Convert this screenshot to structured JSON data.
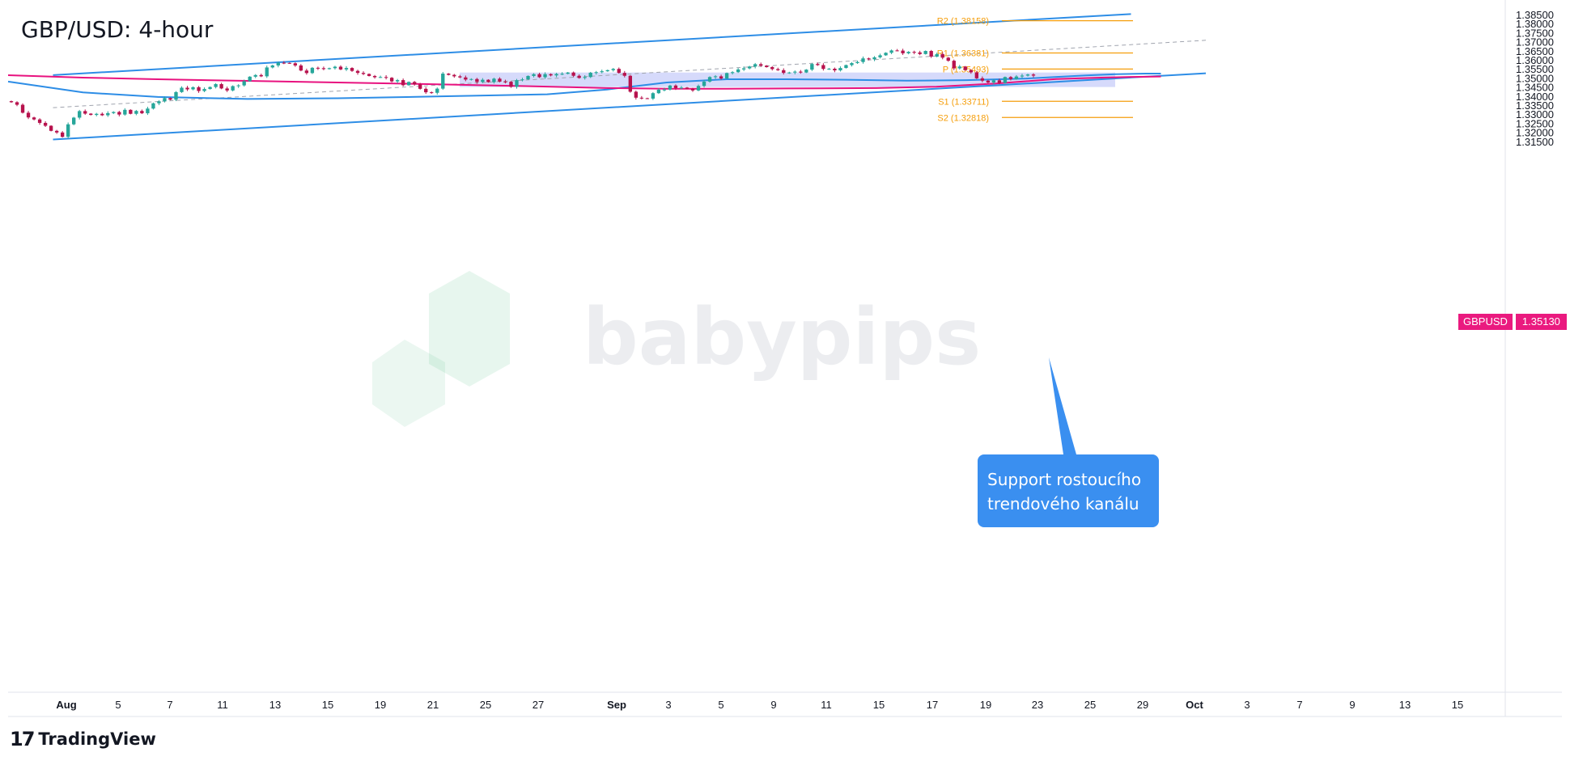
{
  "title": "GBP/USD: 4-hour",
  "symbol_label": "GBPUSD",
  "last_price_label": "1.35130",
  "watermark": "babypips",
  "brand": {
    "name": "TradingView",
    "mark": "17"
  },
  "callout": {
    "line1": "Support rostoucího",
    "line2": "trendového kanálu"
  },
  "colors": {
    "up_candle": "#26a69a",
    "down_candle": "#b7124d",
    "channel": "#2d8de6",
    "sma_blue": "#2d8de6",
    "sma_pink": "#e8127f",
    "pivot": "#f59e0b",
    "zone": "#c8cdfa",
    "callout": "#3a8ff0",
    "price_tag": "#ea1a7f"
  },
  "chart_data": {
    "type": "candlestick",
    "timeframe": "4-hour",
    "y_ticks": [
      "1.38500",
      "1.38000",
      "1.37500",
      "1.37000",
      "1.36500",
      "1.36000",
      "1.35500",
      "1.35000",
      "1.34500",
      "1.34000",
      "1.33500",
      "1.33000",
      "1.32500",
      "1.32000",
      "1.31500"
    ],
    "x_ticks": [
      "Aug",
      "5",
      "7",
      "11",
      "13",
      "15",
      "19",
      "21",
      "25",
      "27",
      "Sep",
      "3",
      "5",
      "9",
      "11",
      "15",
      "17",
      "19",
      "23",
      "25",
      "29",
      "Oct",
      "3",
      "7",
      "9",
      "13",
      "15"
    ],
    "ylim": [
      1.3105,
      1.3865
    ],
    "last_price": 1.3513,
    "candles_close_path": [
      1.3366,
      1.3352,
      1.3308,
      1.3282,
      1.3271,
      1.3252,
      1.3236,
      1.3208,
      1.3199,
      1.3175,
      1.3244,
      1.3281,
      1.3317,
      1.3303,
      1.3296,
      1.3302,
      1.3294,
      1.3306,
      1.3312,
      1.3298,
      1.3324,
      1.3302,
      1.3318,
      1.3305,
      1.3331,
      1.336,
      1.3371,
      1.3389,
      1.338,
      1.3422,
      1.3446,
      1.3437,
      1.3449,
      1.3428,
      1.3439,
      1.345,
      1.3466,
      1.3442,
      1.3431,
      1.3455,
      1.3459,
      1.3482,
      1.3507,
      1.3516,
      1.3509,
      1.3558,
      1.3569,
      1.3584,
      1.3583,
      1.3581,
      1.3569,
      1.3541,
      1.3527,
      1.3556,
      1.3554,
      1.3549,
      1.3554,
      1.3562,
      1.3547,
      1.3555,
      1.3539,
      1.3528,
      1.3522,
      1.3511,
      1.3504,
      1.3505,
      1.3501,
      1.3481,
      1.3488,
      1.346,
      1.3478,
      1.3465,
      1.344,
      1.3421,
      1.3418,
      1.3441,
      1.3524,
      1.3517,
      1.3509,
      1.3503,
      1.3491,
      1.3494,
      1.3478,
      1.349,
      1.3477,
      1.3496,
      1.348,
      1.3479,
      1.3451,
      1.3488,
      1.3492,
      1.3511,
      1.3521,
      1.3504,
      1.3521,
      1.3514,
      1.3522,
      1.3523,
      1.353,
      1.3512,
      1.35,
      1.3505,
      1.3529,
      1.3532,
      1.3537,
      1.3543,
      1.355,
      1.3528,
      1.3512,
      1.3424,
      1.3391,
      1.3388,
      1.3386,
      1.3416,
      1.3435,
      1.3436,
      1.3458,
      1.3444,
      1.3447,
      1.344,
      1.3431,
      1.3456,
      1.348,
      1.3505,
      1.3509,
      1.3497,
      1.3527,
      1.3532,
      1.3547,
      1.3553,
      1.3563,
      1.3576,
      1.3568,
      1.356,
      1.3549,
      1.3543,
      1.3528,
      1.353,
      1.3535,
      1.353,
      1.3546,
      1.3577,
      1.3571,
      1.355,
      1.3551,
      1.3542,
      1.3555,
      1.3571,
      1.3582,
      1.3588,
      1.3608,
      1.3603,
      1.3614,
      1.3625,
      1.3639,
      1.3652,
      1.3651,
      1.3636,
      1.3644,
      1.3641,
      1.3632,
      1.3649,
      1.3618,
      1.3632,
      1.3612,
      1.3595,
      1.3553,
      1.3563,
      1.3543,
      1.3531,
      1.3498,
      1.3485,
      1.3475,
      1.3487,
      1.3472,
      1.3505,
      1.3494,
      1.3508,
      1.3513,
      1.3519,
      1.3513
    ],
    "indicators": [
      {
        "name": "SMA (blue)",
        "points": [
          [
            0,
            1.348
          ],
          [
            0.05,
            1.342
          ],
          [
            0.1,
            1.3395
          ],
          [
            0.16,
            1.3384
          ],
          [
            0.22,
            1.3388
          ],
          [
            0.3,
            1.34
          ],
          [
            0.36,
            1.341
          ],
          [
            0.4,
            1.3436
          ],
          [
            0.44,
            1.3475
          ],
          [
            0.48,
            1.3493
          ],
          [
            0.52,
            1.3493
          ],
          [
            0.56,
            1.349
          ],
          [
            0.6,
            1.3485
          ],
          [
            0.64,
            1.3488
          ],
          [
            0.68,
            1.3497
          ],
          [
            0.72,
            1.3514
          ],
          [
            0.74,
            1.3521
          ],
          [
            0.76,
            1.3524
          ],
          [
            0.77,
            1.3524
          ]
        ]
      },
      {
        "name": "SMA (pink)",
        "points": [
          [
            0,
            1.3515
          ],
          [
            0.05,
            1.3502
          ],
          [
            0.1,
            1.3493
          ],
          [
            0.16,
            1.3484
          ],
          [
            0.22,
            1.3475
          ],
          [
            0.28,
            1.3466
          ],
          [
            0.34,
            1.3456
          ],
          [
            0.4,
            1.3444
          ],
          [
            0.44,
            1.344
          ],
          [
            0.48,
            1.344
          ],
          [
            0.52,
            1.3442
          ],
          [
            0.58,
            1.3444
          ],
          [
            0.62,
            1.3452
          ],
          [
            0.66,
            1.3469
          ],
          [
            0.7,
            1.3494
          ],
          [
            0.73,
            1.3502
          ],
          [
            0.75,
            1.3506
          ],
          [
            0.77,
            1.3508
          ]
        ]
      }
    ],
    "pivots": [
      {
        "label": "R2 (1.38158)",
        "value": 1.38158
      },
      {
        "label": "R1 (1.36381)",
        "value": 1.36381
      },
      {
        "label": "P (1.35493)",
        "value": 1.35493
      },
      {
        "label": "S1 (1.33711)",
        "value": 1.33711
      },
      {
        "label": "S2 (1.32818)",
        "value": 1.32818
      }
    ],
    "channel": {
      "upper": [
        [
          0.03,
          1.3516
        ],
        [
          0.75,
          1.3853
        ]
      ],
      "lower": [
        [
          0.03,
          1.316
        ],
        [
          0.8,
          1.3526
        ]
      ],
      "mid": [
        [
          0.03,
          1.3336
        ],
        [
          0.8,
          1.3708
        ]
      ]
    },
    "support_zone": {
      "from": 1.345,
      "to": 1.353
    },
    "annotation": "Support rostoucího trendového kanálu"
  }
}
